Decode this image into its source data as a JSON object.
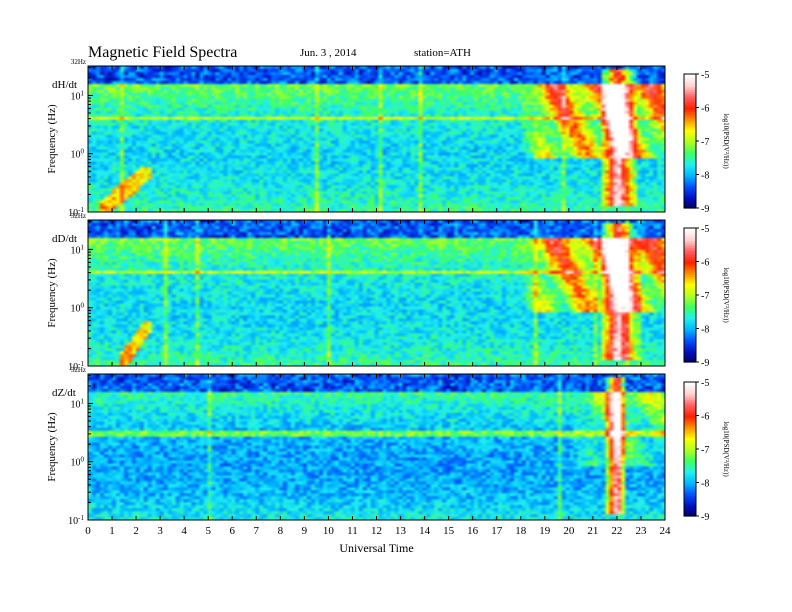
{
  "header": {
    "title": "Magnetic Field Spectra",
    "date": "Jun. 3 , 2014",
    "station": "station=ATH"
  },
  "colors": {
    "colormap": [
      "#000060",
      "#0010c0",
      "#0050ff",
      "#00b8ff",
      "#20f0f0",
      "#40ff60",
      "#b0ff20",
      "#ffff00",
      "#ff9000",
      "#ff2000",
      "#ff6060",
      "#ffd0d0",
      "#ffffff"
    ]
  },
  "chart_data": [
    {
      "type": "heatmap",
      "panel_label": "dH/dt",
      "ylabel": "Frequency (Hz)",
      "top_label": "32Hz",
      "y_scale": "log",
      "ylim_hz": [
        0.1,
        32
      ],
      "y_ticks": [
        {
          "base": "10",
          "exp": "-1",
          "value": 0.1
        },
        {
          "base": "10",
          "exp": "0",
          "value": 1
        },
        {
          "base": "10",
          "exp": "1",
          "value": 10
        }
      ],
      "xlim_hours": [
        0,
        24
      ],
      "colorbar": {
        "ticks": [
          "-5",
          "-6",
          "-7",
          "-8",
          "-9"
        ],
        "range": [
          -9,
          -5
        ],
        "label": "log10(PSD(V²/Hz))"
      },
      "features": {
        "line_hz": 4.0,
        "activity_start_hour": 18,
        "storm_hours": [
          21.3,
          22.8
        ],
        "early_burst_hours": [
          0.5,
          2.6
        ]
      }
    },
    {
      "type": "heatmap",
      "panel_label": "dD/dt",
      "ylabel": "Frequency (Hz)",
      "top_label": "32Hz",
      "y_scale": "log",
      "ylim_hz": [
        0.1,
        32
      ],
      "y_ticks": [
        {
          "base": "10",
          "exp": "-1",
          "value": 0.1
        },
        {
          "base": "10",
          "exp": "0",
          "value": 1
        },
        {
          "base": "10",
          "exp": "1",
          "value": 10
        }
      ],
      "xlim_hours": [
        0,
        24
      ],
      "colorbar": {
        "ticks": [
          "-5",
          "-6",
          "-7",
          "-8",
          "-9"
        ],
        "range": [
          -9,
          -5
        ],
        "label": "log10(PSD(V²/Hz))"
      },
      "features": {
        "line_hz": 4.0,
        "activity_start_hour": 18,
        "storm_hours": [
          21.3,
          22.8
        ],
        "early_burst_hours": [
          1.3,
          2.6
        ]
      }
    },
    {
      "type": "heatmap",
      "panel_label": "dZ/dt",
      "ylabel": "Frequency (Hz)",
      "top_label": "32Hz",
      "y_scale": "log",
      "ylim_hz": [
        0.1,
        32
      ],
      "y_ticks": [
        {
          "base": "10",
          "exp": "-1",
          "value": 0.1
        },
        {
          "base": "10",
          "exp": "0",
          "value": 1
        },
        {
          "base": "10",
          "exp": "1",
          "value": 10
        }
      ],
      "xlim_hours": [
        0,
        24
      ],
      "colorbar": {
        "ticks": [
          "-5",
          "-6",
          "-7",
          "-8",
          "-9"
        ],
        "range": [
          -9,
          -5
        ],
        "label": "log10(PSD(V²/Hz))"
      },
      "features": {
        "line_hz": 3.0,
        "activity_start_hour": 20,
        "storm_hours": [
          21.5,
          22.4
        ],
        "early_burst_hours": []
      }
    }
  ],
  "x_axis": {
    "label": "Universal Time",
    "ticks": [
      "0",
      "1",
      "2",
      "3",
      "4",
      "5",
      "6",
      "7",
      "8",
      "9",
      "10",
      "11",
      "12",
      "13",
      "14",
      "15",
      "16",
      "17",
      "18",
      "19",
      "20",
      "21",
      "22",
      "23",
      "24"
    ]
  }
}
